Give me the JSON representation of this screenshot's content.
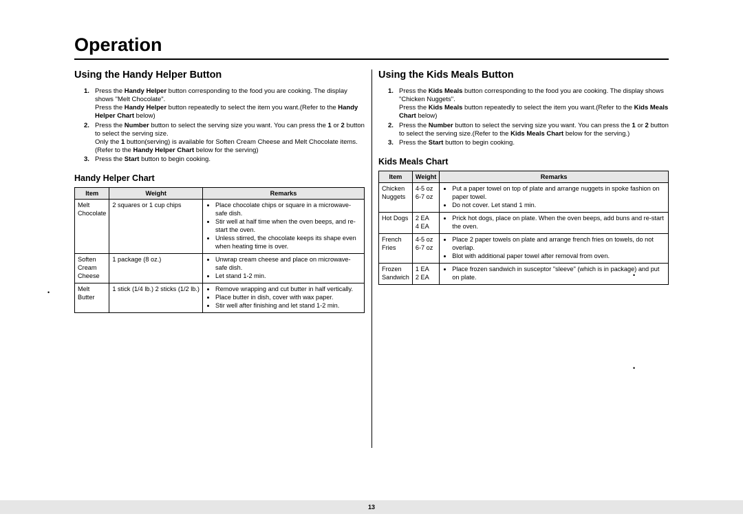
{
  "page": {
    "title": "Operation",
    "number": "13"
  },
  "left": {
    "heading": "Using the Handy Helper Button",
    "chart_heading": "Handy Helper Chart",
    "steps": [
      {
        "num": "1.",
        "html": "Press the <b>Handy Helper</b> button corresponding to the food you are cooking. The display shows \"Melt Chocolate\".<br>Press the <b>Handy Helper</b> button repeatedly to select the item you want.(Refer to the <b>Handy Helper Chart</b> below)"
      },
      {
        "num": "2.",
        "html": "Press the <b>Number</b> button to select the serving size you want. You can press the <b>1</b> or <b>2</b> button to select the serving size.<br>Only the <b>1</b> button(serving) is available for Soften Cream Cheese and Melt Chocolate items.(Refer to the <b>Handy Helper Chart</b> below for the serving)"
      },
      {
        "num": "3.",
        "html": "Press the <b>Start</b> button to begin cooking."
      }
    ],
    "table": {
      "headers": [
        "Item",
        "Weight",
        "Remarks"
      ],
      "rows": [
        {
          "item": "Melt Chocolate",
          "weight": "2 squares or 1 cup chips",
          "remarks": [
            "Place chocolate chips or square in a microwave-safe dish.",
            "Stir well at half time when the oven beeps, and re-start the oven.",
            "Unless stirred, the chocolate keeps its shape even when heating time is over."
          ]
        },
        {
          "item": "Soften Cream Cheese",
          "weight": "1 package (8 oz.)",
          "remarks": [
            "Unwrap cream cheese and place on microwave-safe dish.",
            "Let stand 1-2 min."
          ]
        },
        {
          "item": "Melt Butter",
          "weight": "1 stick (1/4 lb.) 2 sticks (1/2 lb.)",
          "remarks": [
            "Remove wrapping and cut butter in half vertically.",
            "Place butter in dish, cover with wax paper.",
            "Stir well after finishing and let stand 1-2 min."
          ]
        }
      ]
    }
  },
  "right": {
    "heading": "Using the Kids Meals Button",
    "chart_heading": "Kids Meals Chart",
    "steps": [
      {
        "num": "1.",
        "html": "Press the <b>Kids Meals</b> button corresponding to the food you are cooking. The display shows \"Chicken Nuggets\".<br>Press the <b>Kids Meals</b> button repeatedly to select the item you want.(Refer to the <b>Kids Meals Chart</b> below)"
      },
      {
        "num": "2.",
        "html": "Press the <b>Number</b> button to select the serving size you want. You can press the <b>1</b> or <b>2</b> button to select the serving size.(Refer to the <b>Kids Meals Chart</b> below for the serving.)"
      },
      {
        "num": "3.",
        "html": "Press the  <b>Start</b> button to begin cooking."
      }
    ],
    "table": {
      "headers": [
        "Item",
        "Weight",
        "Remarks"
      ],
      "rows": [
        {
          "item": "Chicken Nuggets",
          "weight": "4-5 oz<br>6-7 oz",
          "remarks": [
            "Put a paper towel on top of plate and arrange nuggets in spoke fashion on paper towel.",
            "Do not cover. Let stand 1 min."
          ]
        },
        {
          "item": "Hot Dogs",
          "weight": "2 EA<br>4 EA",
          "remarks": [
            "Prick hot dogs, place on plate. When the oven beeps, add buns and re-start the oven."
          ]
        },
        {
          "item": "French Fries",
          "weight": "4-5 oz<br>6-7 oz",
          "remarks": [
            "Place 2 paper towels on plate and arrange french fries on towels, do not overlap.",
            "Blot with additional paper towel after removal from oven."
          ]
        },
        {
          "item": "Frozen Sandwich",
          "weight": "1 EA<br>2 EA",
          "remarks": [
            "Place frozen sandwich in susceptor \"sleeve\" (which is in package) and put on plate."
          ]
        }
      ]
    }
  }
}
